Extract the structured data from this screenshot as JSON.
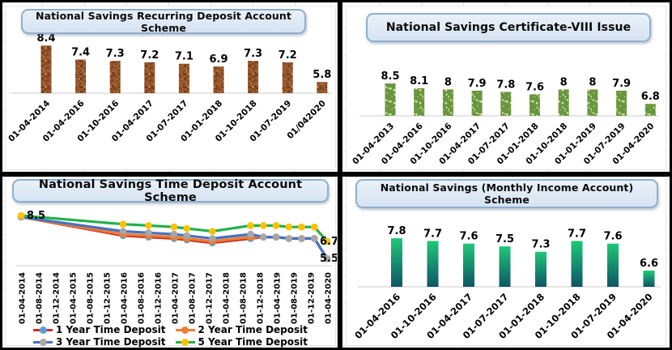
{
  "style": {
    "title_box_fill": "#DCE7F3",
    "title_box_border": "#8FAFCE",
    "frame_color": "#000000",
    "axis_line_color": "#D8D8D8",
    "label_color": "#000000"
  },
  "chart_data": [
    {
      "type": "bar",
      "title": "National Savings Recurring Deposit Account Scheme",
      "categories": [
        "01-04-2014",
        "01-04-2016",
        "01-10-2016",
        "01-04-2017",
        "01-07-2017",
        "01-01-2018",
        "01-10-2018",
        "01-07-2019",
        "01/042020"
      ],
      "values": [
        8.4,
        7.4,
        7.3,
        7.2,
        7.1,
        6.9,
        7.3,
        7.2,
        5.8
      ],
      "ylim": [
        5.0,
        8.8
      ],
      "bar_color": "#9E5A2C",
      "bar_texture": "dark-speckle-marble",
      "speckle_dark": [
        "#6B3A1E",
        "#7A4223",
        "#5C321A"
      ],
      "speckle_light": [
        "#BD7B45",
        "#C98A52"
      ],
      "data_labels": true,
      "legend": "none",
      "grid": false
    },
    {
      "type": "bar",
      "title": "National Savings Certificate-VIII Issue",
      "categories": [
        "01-04-2013",
        "01-04-2016",
        "01-10-2016",
        "01-04-2017",
        "01-07-2017",
        "01-01-2018",
        "01-10-2018",
        "01-01-2019",
        "01-07-2019",
        "01-04-2020"
      ],
      "values": [
        8.5,
        8.1,
        8,
        7.9,
        7.8,
        7.6,
        8,
        8,
        7.9,
        6.8
      ],
      "ylim": [
        5.8,
        8.8
      ],
      "bar_color": "#69963E",
      "bar_texture": "light-dot-confetti",
      "dot_colors": [
        "#D6E7A8",
        "#A7C878"
      ],
      "data_labels": true,
      "legend": "none",
      "grid": false
    },
    {
      "type": "line",
      "title": "National Savings Time Deposit Account Scheme",
      "x_axis_type": "date",
      "x_tick_labels": [
        "01-04-2014",
        "01-08-2014",
        "01-12-2014",
        "01-04-2015",
        "01-08-2015",
        "01-12-2015",
        "01-04-2016",
        "01-08-2016",
        "01-12-2016",
        "01-04-2017",
        "01-08-2017",
        "01-12-2017",
        "01-04-2018",
        "01-08-2018",
        "01-12-2018",
        "01-04-2019",
        "01-08-2019",
        "01-12-2019",
        "01-04-2020"
      ],
      "x_point_dates": [
        "01-04-2014",
        "01-04-2016",
        "01-10-2016",
        "01-04-2017",
        "01-07-2017",
        "01-01-2018",
        "01-10-2018",
        "01-01-2019",
        "01-04-2019",
        "01-07-2019",
        "01-10-2019",
        "01-01-2020",
        "01-04-2020"
      ],
      "x_months_from_start": [
        0,
        24,
        30,
        36,
        39,
        45,
        54,
        57,
        60,
        63,
        66,
        69,
        72
      ],
      "series": [
        {
          "name": "1 Year Time Deposit",
          "line_color": "#D03020",
          "marker_color": "#5B9BD5",
          "values": [
            8.4,
            7.1,
            7.0,
            6.9,
            6.8,
            6.6,
            6.9,
            7.0,
            7.0,
            6.9,
            6.9,
            6.9,
            5.5
          ]
        },
        {
          "name": "2 Year Time Deposit",
          "line_color": "#ED7D31",
          "marker_color": "#ED7D31",
          "values": [
            8.4,
            7.2,
            7.1,
            7.0,
            6.9,
            6.7,
            7.0,
            7.0,
            7.0,
            6.9,
            6.9,
            6.9,
            5.5
          ]
        },
        {
          "name": "3 Year Time Deposit",
          "line_color": "#4472C4",
          "marker_color": "#A6A6A6",
          "values": [
            8.4,
            7.4,
            7.3,
            7.2,
            7.1,
            6.9,
            7.2,
            7.0,
            7.0,
            6.9,
            6.9,
            6.9,
            5.5
          ]
        },
        {
          "name": "5 Year Time Deposit",
          "line_color": "#22B14C",
          "marker_color": "#FFC000",
          "values": [
            8.5,
            7.9,
            7.8,
            7.7,
            7.6,
            7.4,
            7.8,
            7.8,
            7.8,
            7.7,
            7.7,
            7.7,
            6.7
          ]
        }
      ],
      "point_labels": [
        {
          "text": "8.5",
          "series_index": 3,
          "point_index": 0
        },
        {
          "text": "6.7",
          "series_index": 3,
          "point_index": 12
        },
        {
          "text": "5.5",
          "series_index": 0,
          "point_index": 12
        }
      ],
      "ylim": [
        5.0,
        8.8
      ],
      "legend_position": "bottom",
      "grid": false
    },
    {
      "type": "bar",
      "title": "National Savings (Monthly Income Account) Scheme",
      "categories": [
        "01-04-2016",
        "01-10-2016",
        "01-04-2017",
        "01-07-2017",
        "01-01-2018",
        "01-10-2018",
        "01-07-2019",
        "01-04-2020"
      ],
      "values": [
        7.8,
        7.7,
        7.6,
        7.5,
        7.3,
        7.7,
        7.6,
        6.6
      ],
      "ylim": [
        6.0,
        8.1
      ],
      "bar_gradient_top": "#1FC877",
      "bar_gradient_bottom": "#0E5566",
      "data_labels": true,
      "legend": "none",
      "grid": false
    }
  ]
}
